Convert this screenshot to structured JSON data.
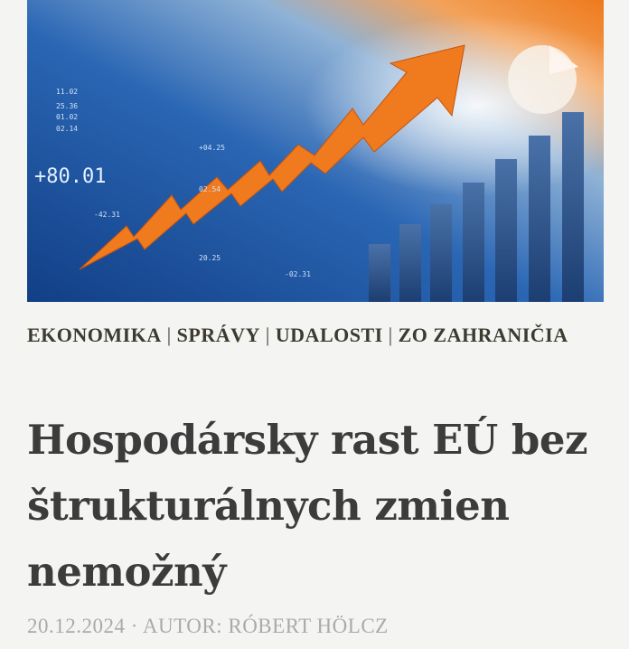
{
  "hero": {
    "labels": [
      "11.02",
      "25.36",
      "01.02",
      "02.14",
      "+80.01",
      "+04.25",
      "02.54",
      "-42.31",
      "20.25",
      "-02.31"
    ],
    "colors": {
      "blue": "#1b4f9a",
      "orange": "#f07a1e"
    }
  },
  "categories": [
    {
      "label": "EKONOMIKA"
    },
    {
      "label": "SPRÁVY"
    },
    {
      "label": "UDALOSTI"
    },
    {
      "label": "ZO ZAHRANIČIA"
    }
  ],
  "separator": "|",
  "article": {
    "title": "Hospodársky rast EÚ bez štrukturálnych zmien nemožný",
    "date": "20.12.2024",
    "dot": "·",
    "author_prefix": "AUTOR:",
    "author": "RÓBERT HÖLCZ"
  }
}
